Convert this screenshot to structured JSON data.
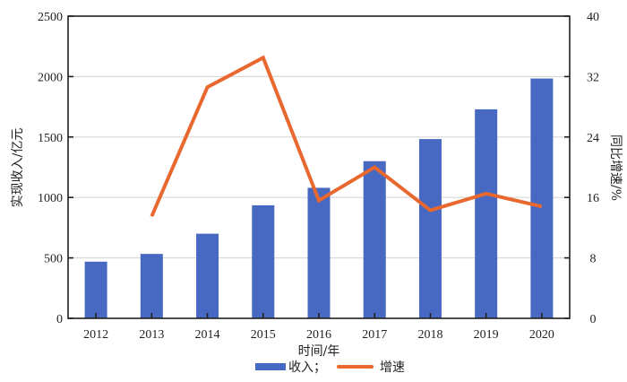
{
  "chart_data": {
    "type": "bar+line",
    "title": "",
    "categories": [
      "2012",
      "2013",
      "2014",
      "2015",
      "2016",
      "2017",
      "2018",
      "2019",
      "2020"
    ],
    "series": [
      {
        "name": "收入；",
        "type": "bar",
        "axis": "left",
        "color": "#4769C2",
        "values": [
          469,
          533,
          700,
          935,
          1080,
          1300,
          1483,
          1729,
          1984
        ]
      },
      {
        "name": "增速",
        "type": "line",
        "axis": "right",
        "color": "#E8682F",
        "values": [
          null,
          13.5,
          30.6,
          34.5,
          15.6,
          20.0,
          14.3,
          16.5,
          14.8
        ]
      }
    ],
    "xlabel": "时间/年",
    "ylabel": "实现收入/亿元",
    "ylabel_right": "同比增速/%",
    "ylim": [
      0,
      2500
    ],
    "ylim_right": [
      0,
      40
    ],
    "yticks": [
      0,
      500,
      1000,
      1500,
      2000,
      2500
    ],
    "yticks_right": [
      0,
      8,
      16,
      24,
      32,
      40
    ],
    "grid": true,
    "legend_position": "bottom"
  },
  "legend": {
    "items": [
      {
        "label": "收入；",
        "color": "#4769C2",
        "shape": "bar"
      },
      {
        "label": "增速",
        "color": "#E8682F",
        "shape": "line"
      }
    ]
  }
}
